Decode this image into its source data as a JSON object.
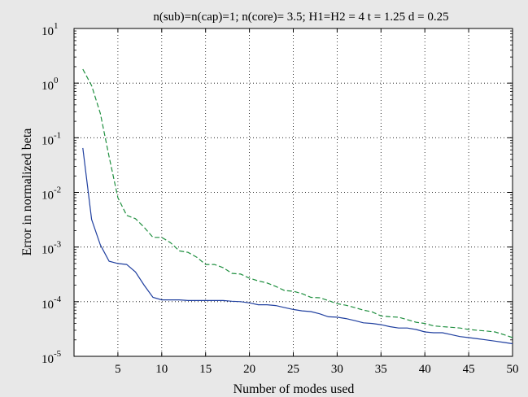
{
  "chart_data": {
    "type": "line",
    "title": "n(sub)=n(cap)=1; n(core)= 3.5; H1=H2 = 4 t = 1.25 d = 0.25",
    "xlabel": "Number of modes used",
    "ylabel": "Error in normalized beta",
    "xlim": [
      0,
      50
    ],
    "ylim": [
      1e-05,
      10
    ],
    "yscale": "log",
    "grid": true,
    "x_ticks": [
      5,
      10,
      15,
      20,
      25,
      30,
      35,
      40,
      45,
      50
    ],
    "y_ticks": [
      {
        "value": 10,
        "base": "10",
        "exp": "1"
      },
      {
        "value": 1,
        "base": "10",
        "exp": "0"
      },
      {
        "value": 0.1,
        "base": "10",
        "exp": "-1"
      },
      {
        "value": 0.01,
        "base": "10",
        "exp": "-2"
      },
      {
        "value": 0.001,
        "base": "10",
        "exp": "-3"
      },
      {
        "value": 0.0001,
        "base": "10",
        "exp": "-4"
      },
      {
        "value": 1e-05,
        "base": "10",
        "exp": "-5"
      }
    ],
    "x": [
      1,
      2,
      3,
      4,
      5,
      6,
      7,
      8,
      9,
      10,
      11,
      12,
      13,
      14,
      15,
      16,
      17,
      18,
      19,
      20,
      21,
      22,
      23,
      24,
      25,
      26,
      27,
      28,
      29,
      30,
      31,
      32,
      33,
      34,
      35,
      36,
      37,
      38,
      39,
      40,
      41,
      42,
      43,
      44,
      45,
      46,
      47,
      48,
      49,
      50
    ],
    "series": [
      {
        "color": "#1f3f9f",
        "dash": "solid",
        "values": [
          0.065,
          0.0032,
          0.0011,
          0.00055,
          0.0005,
          0.00048,
          0.00035,
          0.0002,
          0.00012,
          0.000108,
          0.000108,
          0.000108,
          0.000105,
          0.000105,
          0.000105,
          0.000105,
          0.000105,
          0.000102,
          0.0001,
          9.5e-05,
          8.8e-05,
          8.8e-05,
          8.5e-05,
          7.8e-05,
          7.2e-05,
          6.8e-05,
          6.6e-05,
          6e-05,
          5.3e-05,
          5.2e-05,
          4.9e-05,
          4.5e-05,
          4.1e-05,
          4e-05,
          3.8e-05,
          3.5e-05,
          3.3e-05,
          3.3e-05,
          3.1e-05,
          2.8e-05,
          2.7e-05,
          2.7e-05,
          2.5e-05,
          2.3e-05,
          2.2e-05,
          2.1e-05,
          2e-05,
          1.9e-05,
          1.8e-05,
          1.7e-05
        ]
      },
      {
        "color": "#1f8f3f",
        "dash": "dashed",
        "values": [
          1.8,
          0.9,
          0.28,
          0.045,
          0.008,
          0.0038,
          0.0033,
          0.0023,
          0.0015,
          0.0015,
          0.0012,
          0.00085,
          0.0008,
          0.00065,
          0.00048,
          0.00048,
          0.00042,
          0.00033,
          0.00032,
          0.00027,
          0.00024,
          0.00022,
          0.00019,
          0.00016,
          0.000155,
          0.00014,
          0.00012,
          0.000118,
          0.000105,
          9.2e-05,
          8.6e-05,
          7.8e-05,
          7e-05,
          6.5e-05,
          5.5e-05,
          5.3e-05,
          5.2e-05,
          4.7e-05,
          4.2e-05,
          4e-05,
          3.6e-05,
          3.5e-05,
          3.4e-05,
          3.3e-05,
          3.1e-05,
          3e-05,
          2.9e-05,
          2.8e-05,
          2.5e-05,
          2.2e-05
        ]
      }
    ]
  }
}
